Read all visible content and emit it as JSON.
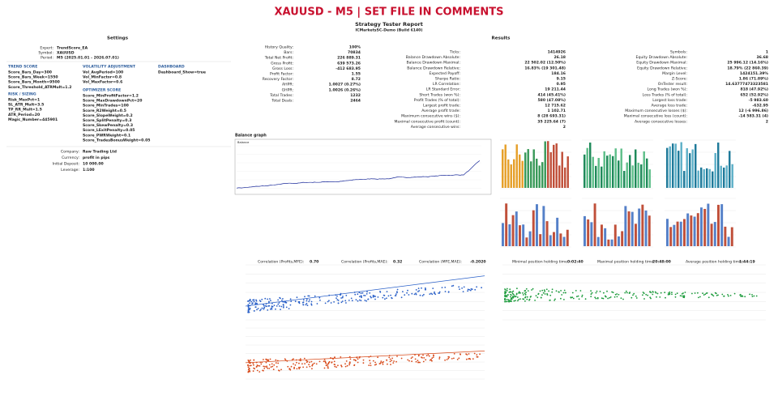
{
  "header": {
    "title": "XAUUSD - M5 | SET FILE IN COMMENTS",
    "subtitle": "Strategy Tester Report",
    "server": "ICMarketsSC-Demo (Build 6140)"
  },
  "settings": {
    "title": "Settings",
    "info": [
      [
        "Expert:",
        "TrendScore_EA"
      ],
      [
        "Symbol:",
        "XAUUSD"
      ],
      [
        "Period:",
        "M5 (2025.01.01 - 2026.07.01)"
      ]
    ],
    "groups": [
      {
        "heading": "TREND SCORE",
        "params": [
          "Score_Bars_Day=300",
          "Score_Bars_Week=1550",
          "Score_Bars_Month=9500",
          "Score_Threshold_ATRMult=1.2"
        ]
      },
      {
        "heading": "VOLATILITY ADJUSTMENT",
        "params": [
          "Vol_AvgPeriod=100",
          "Vol_MinFactor=0.8",
          "Vol_MaxFactor=0.6"
        ]
      },
      {
        "heading": "DASHBOARD",
        "params": [
          "Dashboard_Show=true"
        ]
      },
      {
        "heading": "RISK / SIZING",
        "params": [
          "Risk_MaxPct=1",
          "SL_ATR_Mult=3.5",
          "TP_RR_Mult=1.5",
          "ATR_Period=20",
          "Magic_Number=445901"
        ]
      },
      {
        "heading": "OPTIMIZER SCORE",
        "params": [
          "Score_MinProfitFactor=1.2",
          "Score_MaxDrawdownPct=20",
          "Score_MinTrades=100",
          "Score_R2Weight=0.5",
          "Score_SlopeWeight=0.2",
          "Score_SplitPenalty=0.3",
          "Score_SkewPenalty=0.3",
          "Score_LExitPenalty=0.05",
          "Score_PWRWeight=0.1",
          "Score_TradesBonusWeight=0.05"
        ]
      }
    ],
    "account": [
      [
        "Company:",
        "Raw Trading Ltd"
      ],
      [
        "Currency:",
        "profit in pips"
      ],
      [
        "Initial Deposit:",
        "10 000.00"
      ],
      [
        "Leverage:",
        "1:100"
      ]
    ]
  },
  "results": {
    "title": "Results",
    "columns": [
      [
        [
          "History Quality:",
          "100%"
        ],
        [
          "Bars:",
          "70834"
        ],
        [
          "Total Net Profit:",
          "226 889.31"
        ],
        [
          "Gross Profit:",
          "639 573.26"
        ],
        [
          "Gross Loss:",
          "-412 683.95"
        ],
        [
          "Profit Factor:",
          "1.55"
        ],
        [
          "Recovery Factor:",
          "8.72"
        ],
        [
          "AHPR:",
          "1.0027 (0.27%)"
        ],
        [
          "GHPR:",
          "1.0026 (0.26%)"
        ],
        [
          "Total Trades:",
          "1232"
        ],
        [
          "Total Deals:",
          "2464"
        ]
      ],
      [
        [
          "Ticks:",
          "1414926"
        ],
        [
          "Balance Drawdown Absolute:",
          "26.18"
        ],
        [
          "Balance Drawdown Maximal:",
          "22 502.02 (12.50%)"
        ],
        [
          "Balance Drawdown Relative:",
          "16.83% (19 301.48)"
        ],
        [
          "Expected Payoff:",
          "184.16"
        ],
        [
          "Sharpe Ratio:",
          "9.15"
        ],
        [
          "LR Correlation:",
          "0.95"
        ],
        [
          "LR Standard Error:",
          "19 211.44"
        ],
        [
          "Short Trades (won %):",
          "414 (45.41%)"
        ],
        [
          "Profit Trades (% of total):",
          "580 (47.08%)"
        ],
        [
          "Largest profit trade:",
          "12 715.62"
        ],
        [
          "Average profit trade:",
          "1 102.71"
        ],
        [
          "Maximum consecutive wins ($):",
          "8 (28 693.31)"
        ],
        [
          "Maximal consecutive profit (count):",
          "35 225.64 (7)"
        ],
        [
          "Average consecutive wins:",
          "2"
        ]
      ],
      [
        [
          "Symbols:",
          "1"
        ],
        [
          "Equity Drawdown Absolute:",
          "36.68"
        ],
        [
          "Equity Drawdown Maximal:",
          "25 996.12 (14.16%)"
        ],
        [
          "Equity Drawdown Relative:",
          "18.79% (22 860.39)"
        ],
        [
          "Margin Level:",
          "1424151.39%"
        ],
        [
          "Z-Score:",
          "1.86 (71.89%)"
        ],
        [
          "OnTester result:",
          "14.63777473323581"
        ],
        [
          "Long Trades (won %):",
          "818 (47.92%)"
        ],
        [
          "Loss Trades (% of total):",
          "652 (52.92%)"
        ],
        [
          "Largest loss trade:",
          "-5 983.60"
        ],
        [
          "Average loss trade:",
          "-632.95"
        ],
        [
          "Maximum consecutive losses ($):",
          "12 (-6 996.86)"
        ],
        [
          "Maximal consecutive loss (count):",
          "-14 583.31 (4)"
        ],
        [
          "Average consecutive losses:",
          "2"
        ]
      ]
    ]
  },
  "balance_graph": {
    "title": "Balance graph",
    "legend": "Balance"
  },
  "stats": [
    [
      "Correlation (Profits,MFE):",
      "0.70"
    ],
    [
      "Correlation (Profits,MAE):",
      "0.32"
    ],
    [
      "Correlation (MFE,MAE):",
      "-0.2020"
    ],
    [
      "Minimal position holding time:",
      "0:02:40"
    ],
    [
      "Maximal position holding time:",
      "20:48:00"
    ],
    [
      "Average position holding time:",
      "1:44:19"
    ]
  ]
}
